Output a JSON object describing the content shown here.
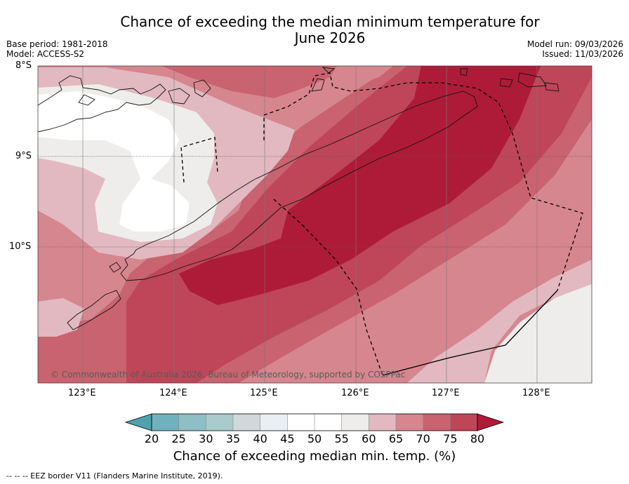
{
  "title_line1": "Chance of exceeding the median minimum temperature for",
  "title_line2": "June 2026",
  "base_period": "Base period: 1981-2018",
  "model": "Model: ACCESS-S2",
  "model_run": "Model run: 09/03/2026",
  "issued": "Issued: 11/03/2026",
  "lat_labels": [
    "8°S",
    "9°S",
    "10°S"
  ],
  "lon_labels": [
    "123°E",
    "124°E",
    "125°E",
    "126°E",
    "127°E",
    "128°E"
  ],
  "copyright": "© Commonwealth of Australia 2026, Bureau of Meteorology, supported by COSPPac",
  "colorbar": {
    "ticks": [
      "20",
      "25",
      "30",
      "35",
      "40",
      "45",
      "50",
      "55",
      "60",
      "65",
      "70",
      "75",
      "80"
    ],
    "colors": [
      "#4ea2ae",
      "#6fb1bc",
      "#8ebec6",
      "#aacbce",
      "#d2d7d9",
      "#e9eff2",
      "#ffffff",
      "#ffffff",
      "#efedec",
      "#e2b9c0",
      "#d6868f",
      "#c9636f",
      "#be4658",
      "#ae1b39"
    ],
    "label": "Chance of exceeding median min. temp. (%)"
  },
  "footer": "--  --  -- EEZ border V11 (Flanders Marine Institute, 2019)."
}
